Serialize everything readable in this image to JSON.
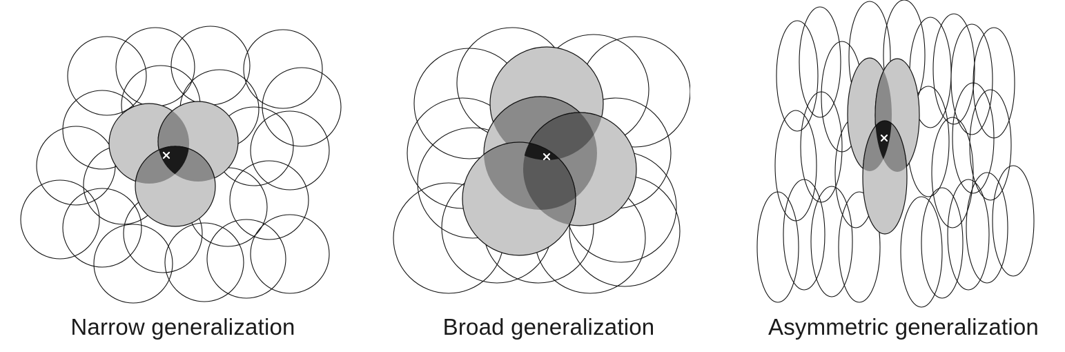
{
  "panels": [
    {
      "caption": "Narrow generalization",
      "icon": "x-marker"
    },
    {
      "caption": "Broad generalization",
      "icon": "x-marker"
    },
    {
      "caption": "Asymmetric generalization",
      "icon": "x-marker"
    }
  ],
  "colors": {
    "outline": "#111111",
    "fill_light": "#c8c8c8",
    "fill_medium": "#8a8a8a",
    "fill_dark": "#5a5a5a",
    "fill_core": "#1a1a1a",
    "marker": "#ffffff"
  }
}
